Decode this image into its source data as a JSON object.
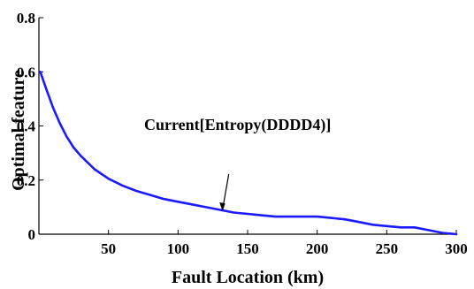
{
  "chart_data": {
    "type": "line",
    "xlabel": "Fault Location (km)",
    "ylabel": "Optimal feature",
    "xlim": [
      0,
      300
    ],
    "ylim": [
      0,
      0.8
    ],
    "x_ticks": [
      50,
      100,
      150,
      200,
      250,
      300
    ],
    "y_ticks": [
      0,
      0.2,
      0.4,
      0.6,
      0.8
    ],
    "x_tick_labels": [
      "50",
      "100",
      "150",
      "200",
      "250",
      "300"
    ],
    "y_tick_labels": [
      "0",
      "0.2",
      "0.4",
      "0.6",
      "0.8"
    ],
    "grid": false,
    "line_color": "#1a1aff",
    "series": [
      {
        "x": [
          1,
          5,
          10,
          15,
          20,
          25,
          30,
          40,
          50,
          60,
          70,
          80,
          90,
          100,
          110,
          120,
          130,
          140,
          150,
          160,
          170,
          180,
          190,
          200,
          210,
          220,
          230,
          240,
          250,
          260,
          270,
          280,
          290,
          300
        ],
        "y": [
          0.6,
          0.54,
          0.47,
          0.41,
          0.36,
          0.32,
          0.29,
          0.24,
          0.205,
          0.18,
          0.16,
          0.145,
          0.13,
          0.12,
          0.11,
          0.1,
          0.09,
          0.08,
          0.075,
          0.07,
          0.065,
          0.065,
          0.065,
          0.065,
          0.06,
          0.055,
          0.045,
          0.035,
          0.03,
          0.025,
          0.025,
          0.015,
          0.005,
          0.0
        ]
      }
    ],
    "annotation": {
      "text": "Current[Entropy(DDDD4)]",
      "x": 132,
      "y": 0.085
    }
  }
}
